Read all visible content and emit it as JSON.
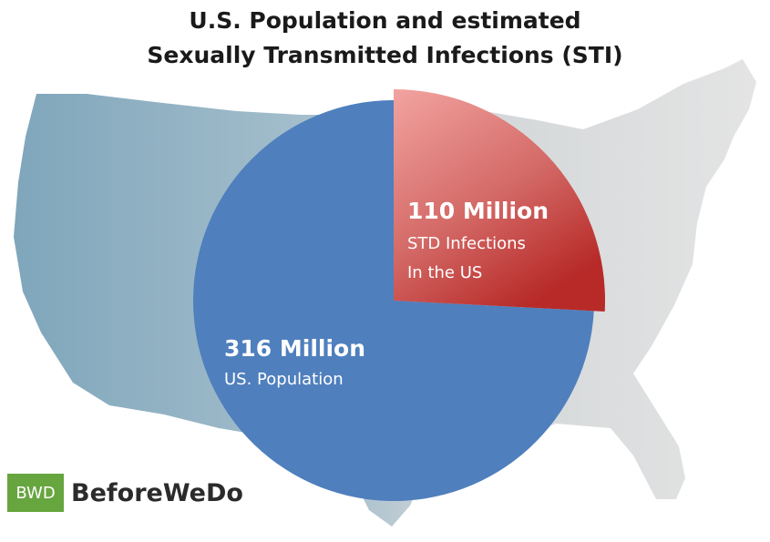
{
  "title": {
    "line1": "U.S. Population and estimated",
    "line2": "Sexually Transmitted Infections (STI)"
  },
  "chart_data": {
    "type": "pie",
    "title": "U.S. Population and estimated Sexually Transmitted Infections (STI)",
    "slices": [
      {
        "name": "STD Infections In the US",
        "value": 110,
        "unit": "Million",
        "label_value": "110 Million",
        "label_line1": "STD Infections",
        "label_line2": "In the US",
        "color": "#d9534f"
      },
      {
        "name": "US. Population",
        "value": 316,
        "unit": "Million",
        "label_value": "316 Million",
        "label_line1": "US. Population",
        "color": "#4f7fbd"
      }
    ],
    "exploded_slice": "STD Infections In the US",
    "start_angle": "12 o'clock, clockwise",
    "background": "map of the contiguous United States",
    "legend": "none"
  },
  "logo": {
    "badge": "BWD",
    "wordmark": "BeforeWeDo",
    "color": "#67a53f"
  }
}
